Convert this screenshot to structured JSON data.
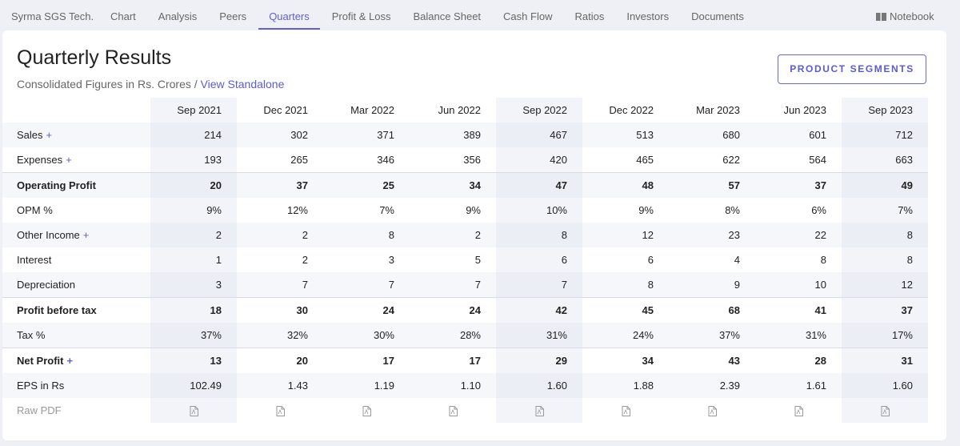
{
  "nav": {
    "brand": "Syrma SGS Tech.",
    "tabs": [
      "Chart",
      "Analysis",
      "Peers",
      "Quarters",
      "Profit & Loss",
      "Balance Sheet",
      "Cash Flow",
      "Ratios",
      "Investors",
      "Documents"
    ],
    "notebook": "Notebook"
  },
  "header": {
    "title": "Quarterly Results",
    "subtitle": "Consolidated Figures in Rs. Crores / ",
    "link": "View Standalone",
    "button": "PRODUCT SEGMENTS"
  },
  "table": {
    "toggle": "+",
    "columns": [
      "Sep 2021",
      "Dec 2021",
      "Mar 2022",
      "Jun 2022",
      "Sep 2022",
      "Dec 2022",
      "Mar 2023",
      "Jun 2023",
      "Sep 2023"
    ],
    "rows": [
      {
        "label": "Sales",
        "expandable": true,
        "bold": false,
        "cells": [
          "214",
          "302",
          "371",
          "389",
          "467",
          "513",
          "680",
          "601",
          "712"
        ]
      },
      {
        "label": "Expenses",
        "expandable": true,
        "bold": false,
        "cells": [
          "193",
          "265",
          "346",
          "356",
          "420",
          "465",
          "622",
          "564",
          "663"
        ]
      },
      {
        "label": "Operating Profit",
        "expandable": false,
        "bold": true,
        "cells": [
          "20",
          "37",
          "25",
          "34",
          "47",
          "48",
          "57",
          "37",
          "49"
        ]
      },
      {
        "label": "OPM %",
        "expandable": false,
        "bold": false,
        "cells": [
          "9%",
          "12%",
          "7%",
          "9%",
          "10%",
          "9%",
          "8%",
          "6%",
          "7%"
        ]
      },
      {
        "label": "Other Income",
        "expandable": true,
        "bold": false,
        "cells": [
          "2",
          "2",
          "8",
          "2",
          "8",
          "12",
          "23",
          "22",
          "8"
        ]
      },
      {
        "label": "Interest",
        "expandable": false,
        "bold": false,
        "cells": [
          "1",
          "2",
          "3",
          "5",
          "6",
          "6",
          "4",
          "8",
          "8"
        ]
      },
      {
        "label": "Depreciation",
        "expandable": false,
        "bold": false,
        "cells": [
          "3",
          "7",
          "7",
          "7",
          "7",
          "8",
          "9",
          "10",
          "12"
        ]
      },
      {
        "label": "Profit before tax",
        "expandable": false,
        "bold": true,
        "cells": [
          "18",
          "30",
          "24",
          "24",
          "42",
          "45",
          "68",
          "41",
          "37"
        ]
      },
      {
        "label": "Tax %",
        "expandable": false,
        "bold": false,
        "cells": [
          "37%",
          "32%",
          "30%",
          "28%",
          "31%",
          "24%",
          "37%",
          "31%",
          "17%"
        ]
      },
      {
        "label": "Net Profit",
        "expandable": true,
        "bold": true,
        "cells": [
          "13",
          "20",
          "17",
          "17",
          "29",
          "34",
          "43",
          "28",
          "31"
        ]
      },
      {
        "label": "EPS in Rs",
        "expandable": false,
        "bold": false,
        "cells": [
          "102.49",
          "1.43",
          "1.19",
          "1.10",
          "1.60",
          "1.88",
          "2.39",
          "1.61",
          "1.60"
        ]
      }
    ],
    "raw_pdf": "Raw PDF"
  }
}
